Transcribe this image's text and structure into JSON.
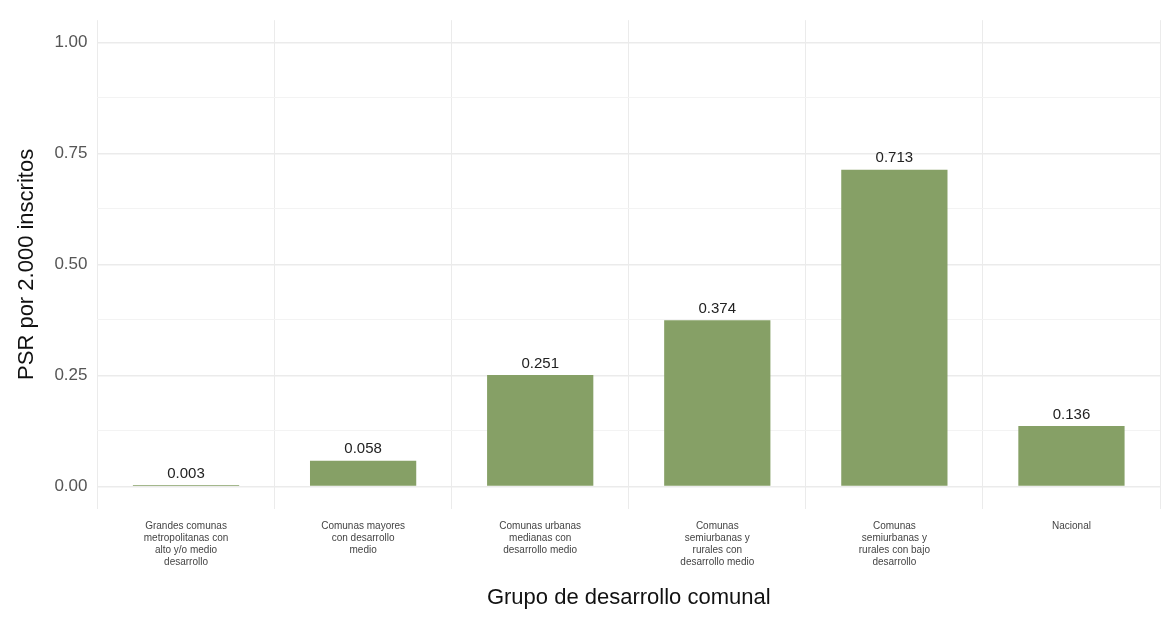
{
  "chart_data": {
    "type": "bar",
    "xlabel": "Grupo de desarrollo comunal",
    "ylabel": "PSR por 2.000 inscritos",
    "categories": [
      "Grandes comunas metropolitanas con alto y/o medio desarrollo",
      "Comunas mayores con desarrollo medio",
      "Comunas urbanas medianas con desarrollo medio",
      "Comunas semiurbanas y rurales con desarrollo medio",
      "Comunas semiurbanas y rurales con bajo desarrollo",
      "Nacional"
    ],
    "values": [
      0.003,
      0.058,
      0.251,
      0.374,
      0.713,
      0.136
    ],
    "color": "#86a066",
    "ylim": [
      -0.05,
      1.05
    ],
    "yticks": [
      {
        "value": 0,
        "label": "0.00"
      },
      {
        "value": 0.125,
        "label": null
      },
      {
        "value": 0.25,
        "label": "0.25"
      },
      {
        "value": 0.375,
        "label": null
      },
      {
        "value": 0.5,
        "label": "0.50"
      },
      {
        "value": 0.625,
        "label": null
      },
      {
        "value": 0.75,
        "label": "0.75"
      },
      {
        "value": 0.875,
        "label": null
      },
      {
        "value": 1,
        "label": "1.00"
      }
    ],
    "grid": true,
    "data_labels": true,
    "legend": false
  }
}
